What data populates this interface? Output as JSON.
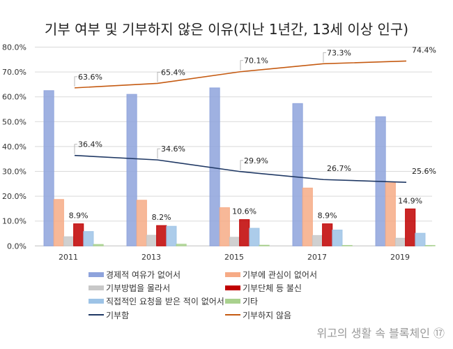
{
  "chart_data": {
    "type": "bar",
    "title": "기부 여부 및 기부하지 않은 이유(지난 1년간, 13세 이상 인구)",
    "categories": [
      "2011",
      "2013",
      "2015",
      "2017",
      "2019"
    ],
    "ylim": [
      0,
      80
    ],
    "yticks": [
      "0.0%",
      "10.0%",
      "20.0%",
      "30.0%",
      "40.0%",
      "50.0%",
      "60.0%",
      "70.0%",
      "80.0%"
    ],
    "grid": true,
    "legend_position": "bottom",
    "series": [
      {
        "name": "경제적 여유가 없어서",
        "kind": "bar",
        "color": "#8ea3dc",
        "values": [
          62.5,
          61.0,
          63.6,
          57.3,
          52.0
        ]
      },
      {
        "name": "기부에 관심이 없어서",
        "kind": "bar",
        "color": "#f6ab86",
        "values": [
          18.7,
          18.4,
          15.4,
          23.3,
          25.4
        ]
      },
      {
        "name": "기부방법을 몰라서",
        "kind": "bar",
        "color": "#c8c8c8",
        "values": [
          3.7,
          4.3,
          3.5,
          4.2,
          3.1
        ]
      },
      {
        "name": "기부단체 등 불신",
        "kind": "bar",
        "color": "#c00000",
        "values": [
          8.9,
          8.2,
          10.6,
          8.9,
          14.9
        ],
        "labels": [
          "8.9%",
          "8.2%",
          "10.6%",
          "8.9%",
          "14.9%"
        ]
      },
      {
        "name": "직접적인 요청을 받은 적이 없어서",
        "kind": "bar",
        "color": "#9dc3e6",
        "values": [
          5.8,
          7.9,
          7.1,
          6.4,
          5.1
        ]
      },
      {
        "name": "기타",
        "kind": "bar",
        "color": "#a9d18e",
        "values": [
          0.6,
          0.7,
          0.3,
          0.2,
          0.2
        ]
      },
      {
        "name": "기부함",
        "kind": "line",
        "color": "#1f3864",
        "values": [
          36.4,
          34.6,
          29.9,
          26.7,
          25.6
        ],
        "labels": [
          "36.4%",
          "34.6%",
          "29.9%",
          "26.7%",
          "25.6%"
        ]
      },
      {
        "name": "기부하지 않음",
        "kind": "line",
        "color": "#c55a11",
        "values": [
          63.6,
          65.4,
          70.1,
          73.3,
          74.4
        ],
        "labels": [
          "63.6%",
          "65.4%",
          "70.1%",
          "73.3%",
          "74.4%"
        ]
      }
    ]
  },
  "watermark": "위고의 생활 속 블록체인 ⑰"
}
